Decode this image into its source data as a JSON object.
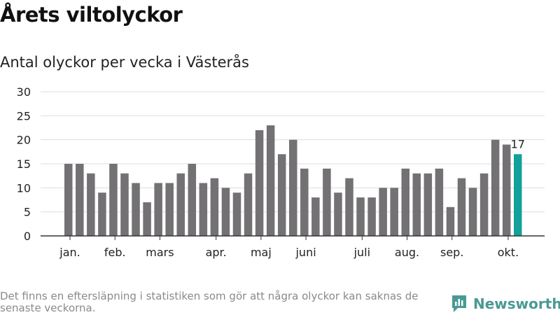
{
  "title": "Årets viltolyckor",
  "subtitle": "Antal olyckor per vecka i Västerås",
  "footnote": "Det finns en eftersläpning i statistiken som gör att några olyckor kan saknas de senaste veckorna.",
  "brand": "Newsworthy",
  "colors": {
    "bar": "#737174",
    "highlight": "#13a199",
    "grid": "#dddddd",
    "axis": "#333333",
    "brand": "#4a9a93"
  },
  "chart_data": {
    "type": "bar",
    "values": [
      15,
      15,
      13,
      9,
      15,
      13,
      11,
      7,
      11,
      11,
      13,
      15,
      11,
      12,
      10,
      9,
      13,
      22,
      23,
      17,
      20,
      14,
      8,
      14,
      9,
      12,
      8,
      8,
      10,
      10,
      14,
      13,
      13,
      14,
      6,
      12,
      10,
      13,
      20,
      19,
      17
    ],
    "highlight_index": 40,
    "highlight_label": "17",
    "month_labels": [
      {
        "label": "jan.",
        "bar": 0.5
      },
      {
        "label": "feb.",
        "bar": 4.5
      },
      {
        "label": "mars",
        "bar": 8.5
      },
      {
        "label": "apr.",
        "bar": 13.5
      },
      {
        "label": "maj",
        "bar": 17.5
      },
      {
        "label": "juni",
        "bar": 21.5
      },
      {
        "label": "juli",
        "bar": 26.5
      },
      {
        "label": "aug.",
        "bar": 30.5
      },
      {
        "label": "sep.",
        "bar": 34.5
      },
      {
        "label": "okt.",
        "bar": 39.5
      }
    ],
    "y_ticks": [
      0,
      5,
      10,
      15,
      20,
      25,
      30
    ],
    "ylim": [
      0,
      30
    ],
    "grid": true
  }
}
